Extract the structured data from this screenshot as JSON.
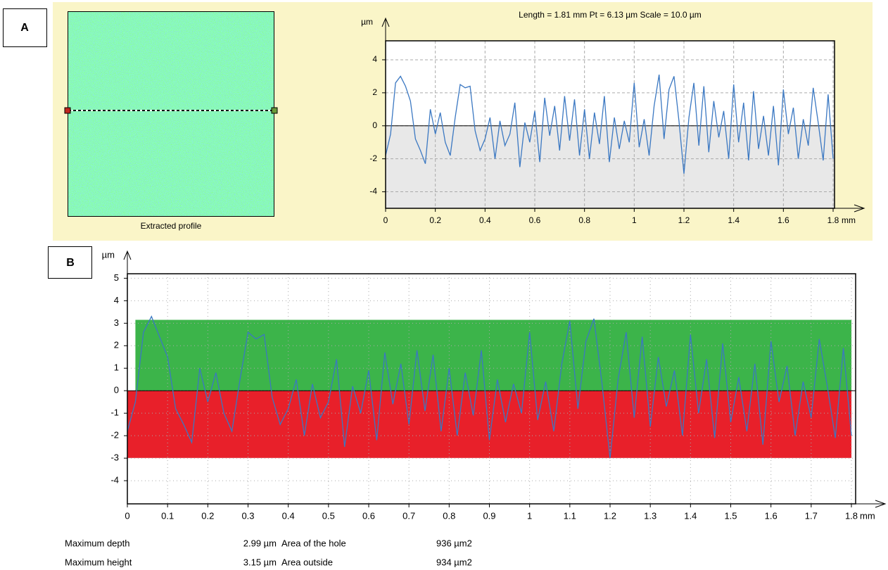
{
  "panel_labels": [
    "A",
    "B"
  ],
  "image_caption": "Extracted profile",
  "chart_data": [
    {
      "type": "line",
      "title": "Length = 1.81 mm  Pt = 6.13 µm  Scale = 10.0 µm",
      "y_unit": "µm",
      "x_unit": "mm",
      "x": [
        0,
        0.02,
        0.04,
        0.06,
        0.08,
        0.1,
        0.12,
        0.14,
        0.16,
        0.18,
        0.2,
        0.22,
        0.24,
        0.26,
        0.28,
        0.3,
        0.32,
        0.34,
        0.36,
        0.38,
        0.4,
        0.42,
        0.44,
        0.46,
        0.48,
        0.5,
        0.52,
        0.54,
        0.56,
        0.58,
        0.6,
        0.62,
        0.64,
        0.66,
        0.68,
        0.7,
        0.72,
        0.74,
        0.76,
        0.78,
        0.8,
        0.82,
        0.84,
        0.86,
        0.88,
        0.9,
        0.92,
        0.94,
        0.96,
        0.98,
        1,
        1.02,
        1.04,
        1.06,
        1.08,
        1.1,
        1.12,
        1.14,
        1.16,
        1.18,
        1.2,
        1.22,
        1.24,
        1.26,
        1.28,
        1.3,
        1.32,
        1.34,
        1.36,
        1.38,
        1.4,
        1.42,
        1.44,
        1.46,
        1.48,
        1.5,
        1.52,
        1.54,
        1.56,
        1.58,
        1.6,
        1.62,
        1.64,
        1.66,
        1.68,
        1.7,
        1.72,
        1.74,
        1.76,
        1.78,
        1.8
      ],
      "series": [
        {
          "color": "#3b78c2",
          "values": [
            -1.8,
            -0.5,
            2.6,
            3.0,
            2.4,
            1.5,
            -0.8,
            -1.5,
            -2.3,
            1.0,
            -0.5,
            0.8,
            -1.0,
            -1.8,
            0.5,
            2.5,
            2.3,
            2.4,
            -0.3,
            -1.5,
            -0.8,
            0.5,
            -2.0,
            0.3,
            -1.2,
            -0.5,
            1.4,
            -2.5,
            0.2,
            -1.0,
            0.9,
            -2.2,
            1.7,
            -0.6,
            1.2,
            -1.5,
            1.8,
            -0.9,
            1.6,
            -1.8,
            1.0,
            -2.0,
            0.8,
            -1.1,
            1.8,
            -2.2,
            0.5,
            -1.4,
            0.3,
            -1.0,
            2.6,
            -1.3,
            0.4,
            -1.8,
            1.2,
            3.1,
            -0.8,
            2.2,
            3.0,
            0.3,
            -2.9,
            0.5,
            2.6,
            -1.2,
            2.4,
            -1.6,
            1.5,
            -0.7,
            0.9,
            -2.0,
            2.5,
            -1.0,
            1.4,
            -2.1,
            2.1,
            -1.4,
            0.6,
            -1.8,
            1.2,
            -2.4,
            2.2,
            -0.5,
            1.1,
            -2.0,
            0.4,
            -1.2,
            2.3,
            0.2,
            -2.1,
            1.9,
            -2.0
          ]
        }
      ],
      "xlim": [
        0,
        1.8
      ],
      "ylim": [
        -5.0,
        5.15
      ],
      "xticks": [
        0,
        0.2,
        0.4,
        0.6,
        0.8,
        1,
        1.2,
        1.4,
        1.6,
        1.8
      ],
      "yticks": [
        -4,
        -2,
        0,
        2,
        4
      ],
      "grid": true
    },
    {
      "type": "line",
      "y_unit": "µm",
      "x_unit": "mm",
      "x": [
        0,
        0.02,
        0.04,
        0.06,
        0.08,
        0.1,
        0.12,
        0.14,
        0.16,
        0.18,
        0.2,
        0.22,
        0.24,
        0.26,
        0.28,
        0.3,
        0.32,
        0.34,
        0.36,
        0.38,
        0.4,
        0.42,
        0.44,
        0.46,
        0.48,
        0.5,
        0.52,
        0.54,
        0.56,
        0.58,
        0.6,
        0.62,
        0.64,
        0.66,
        0.68,
        0.7,
        0.72,
        0.74,
        0.76,
        0.78,
        0.8,
        0.82,
        0.84,
        0.86,
        0.88,
        0.9,
        0.92,
        0.94,
        0.96,
        0.98,
        1,
        1.02,
        1.04,
        1.06,
        1.08,
        1.1,
        1.12,
        1.14,
        1.16,
        1.18,
        1.2,
        1.22,
        1.24,
        1.26,
        1.28,
        1.3,
        1.32,
        1.34,
        1.36,
        1.38,
        1.4,
        1.42,
        1.44,
        1.46,
        1.48,
        1.5,
        1.52,
        1.54,
        1.56,
        1.58,
        1.6,
        1.62,
        1.64,
        1.66,
        1.68,
        1.7,
        1.72,
        1.74,
        1.76,
        1.78,
        1.8
      ],
      "series": [
        {
          "color": "#3b78c2",
          "values": [
            -1.8,
            -0.5,
            2.6,
            3.3,
            2.4,
            1.5,
            -0.8,
            -1.5,
            -2.3,
            1.0,
            -0.5,
            0.8,
            -1.0,
            -1.8,
            0.5,
            2.6,
            2.3,
            2.5,
            -0.3,
            -1.5,
            -0.8,
            0.5,
            -2.0,
            0.3,
            -1.2,
            -0.5,
            1.4,
            -2.5,
            0.2,
            -1.0,
            0.9,
            -2.2,
            1.7,
            -0.6,
            1.2,
            -1.5,
            1.8,
            -0.9,
            1.6,
            -1.8,
            1.0,
            -2.0,
            0.8,
            -1.1,
            1.8,
            -2.2,
            0.5,
            -1.4,
            0.3,
            -1.0,
            2.6,
            -1.3,
            0.4,
            -1.8,
            1.2,
            3.1,
            -0.8,
            2.2,
            3.2,
            0.3,
            -3.0,
            0.5,
            2.6,
            -1.2,
            2.4,
            -1.6,
            1.5,
            -0.7,
            0.9,
            -2.0,
            2.5,
            -1.0,
            1.4,
            -2.1,
            2.1,
            -1.4,
            0.6,
            -1.8,
            1.2,
            -2.4,
            2.2,
            -0.5,
            1.1,
            -2.0,
            0.4,
            -1.2,
            2.3,
            0.2,
            -2.1,
            1.9,
            -2.0
          ]
        }
      ],
      "bands": [
        {
          "color": "#3cb44a",
          "from": 0,
          "to": 3.15,
          "xlim": [
            0.02,
            1.8
          ]
        },
        {
          "color": "#e8202a",
          "from": 0,
          "to": -2.99,
          "xlim": [
            0,
            1.8
          ]
        }
      ],
      "xlim": [
        0,
        1.8
      ],
      "ylim": [
        -5.03,
        5.2
      ],
      "xticks": [
        0,
        0.1,
        0.2,
        0.3,
        0.4,
        0.5,
        0.6,
        0.7,
        0.8,
        0.9,
        1,
        1.1,
        1.2,
        1.3,
        1.4,
        1.5,
        1.6,
        1.7,
        1.8
      ],
      "yticks": [
        -4,
        -3,
        -2,
        -1,
        0,
        1,
        2,
        3,
        4,
        5
      ],
      "grid": true
    }
  ],
  "stats": {
    "rows": [
      [
        "Maximum depth",
        "2.99 µm",
        "Area of the hole",
        "936 µm2"
      ],
      [
        "Maximum height",
        "3.15 µm",
        "Area outside",
        "934 µm2"
      ]
    ]
  }
}
